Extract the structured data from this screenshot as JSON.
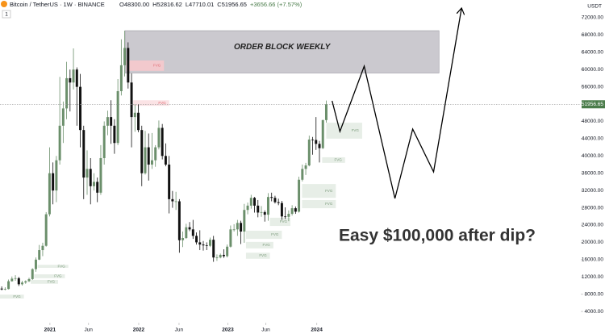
{
  "chart_data": {
    "type": "candlestick",
    "title": "Bitcoin / TetherUS · 1W · BINANCE",
    "interval_badge": "1",
    "header_values": [
      "O48300.00",
      "H52816.62",
      "L47710.01",
      "C51956.65",
      "+3656.66 (+7.57%)"
    ],
    "currency": "USDT",
    "annotation": "Easy $100,000 after dip?",
    "up_color": "#6b8f6b",
    "down_color": "#111111",
    "last_price_color": "#4a7c4a",
    "projection_color": "#000000",
    "xlim": [
      0,
      170
    ],
    "ylim": [
      1400,
      76100
    ],
    "xticks": [
      {
        "value": 14.6,
        "label": "2021"
      },
      {
        "value": 25.9,
        "label": "Jun"
      },
      {
        "value": 40.6,
        "label": "2022"
      },
      {
        "value": 52.4,
        "label": "Jun"
      },
      {
        "value": 66.7,
        "label": "2023"
      },
      {
        "value": 77.8,
        "label": "Jun"
      },
      {
        "value": 92.7,
        "label": "2024"
      }
    ],
    "yticks": [
      {
        "value": 72000,
        "label": "72000.00"
      },
      {
        "value": 68000,
        "label": "68000.00"
      },
      {
        "value": 64000,
        "label": "64000.00"
      },
      {
        "value": 60000,
        "label": "60000.00"
      },
      {
        "value": 56000,
        "label": "56000.00"
      },
      {
        "value": 52000,
        "label": "52000.00"
      },
      {
        "value": 48000,
        "label": "48000.00"
      },
      {
        "value": 44000,
        "label": "44000.00"
      },
      {
        "value": 40000,
        "label": "40000.00"
      },
      {
        "value": 36000,
        "label": "36000.00"
      },
      {
        "value": 32000,
        "label": "32000.00"
      },
      {
        "value": 28000,
        "label": "28000.00"
      },
      {
        "value": 24000,
        "label": "24000.00"
      },
      {
        "value": 20000,
        "label": "20000.00"
      },
      {
        "value": 16000,
        "label": "16000.00"
      },
      {
        "value": 12000,
        "label": "12000.00"
      },
      {
        "value": 8000,
        "label": "8000.00"
      },
      {
        "value": 4000,
        "label": "4000.00"
      }
    ],
    "ohlc": [
      [
        9300,
        9800,
        8900,
        9100
      ],
      [
        9100,
        9600,
        8900,
        9200
      ],
      [
        9200,
        11400,
        9100,
        11000
      ],
      [
        11000,
        12100,
        10900,
        11600
      ],
      [
        11600,
        12400,
        11100,
        11700
      ],
      [
        11700,
        12000,
        9900,
        10300
      ],
      [
        10300,
        11100,
        10000,
        10700
      ],
      [
        10700,
        11200,
        10400,
        11000
      ],
      [
        11000,
        11800,
        10800,
        11500
      ],
      [
        11500,
        14000,
        11300,
        13800
      ],
      [
        13800,
        16500,
        13200,
        16000
      ],
      [
        16000,
        19400,
        15900,
        18200
      ],
      [
        18200,
        19900,
        16800,
        19200
      ],
      [
        19200,
        27000,
        19000,
        26500
      ],
      [
        26500,
        42000,
        26000,
        36000
      ],
      [
        36000,
        38500,
        28800,
        32000
      ],
      [
        32000,
        40000,
        29300,
        39000
      ],
      [
        39000,
        58300,
        38000,
        47000
      ],
      [
        47000,
        52600,
        43000,
        51000
      ],
      [
        51000,
        61800,
        48500,
        58000
      ],
      [
        58000,
        60000,
        50300,
        57000
      ],
      [
        57000,
        64900,
        55400,
        60000
      ],
      [
        60000,
        60500,
        47000,
        56000
      ],
      [
        56000,
        59000,
        42000,
        46000
      ],
      [
        46000,
        47000,
        30000,
        35000
      ],
      [
        35000,
        41300,
        31000,
        37000
      ],
      [
        37000,
        39500,
        28800,
        33000
      ],
      [
        33000,
        36000,
        32000,
        34000
      ],
      [
        34000,
        35000,
        29300,
        31500
      ],
      [
        31500,
        42500,
        31000,
        39500
      ],
      [
        39500,
        48000,
        38000,
        47000
      ],
      [
        47000,
        50500,
        44800,
        49000
      ],
      [
        49000,
        52900,
        42800,
        47000
      ],
      [
        47000,
        48500,
        40500,
        43000
      ],
      [
        43000,
        57800,
        42500,
        55000
      ],
      [
        55000,
        67000,
        54000,
        61000
      ],
      [
        61000,
        69000,
        58400,
        65000
      ],
      [
        65000,
        66300,
        55600,
        57000
      ],
      [
        57000,
        59100,
        42000,
        49000
      ],
      [
        49000,
        51900,
        45600,
        50000
      ],
      [
        50000,
        52000,
        45500,
        46000
      ],
      [
        46000,
        47000,
        33000,
        36000
      ],
      [
        36000,
        45800,
        35700,
        42000
      ],
      [
        42000,
        45200,
        34300,
        38000
      ],
      [
        38000,
        45300,
        37000,
        39000
      ],
      [
        39000,
        42500,
        37500,
        42000
      ],
      [
        42000,
        48200,
        41500,
        46500
      ],
      [
        46500,
        47400,
        39200,
        40000
      ],
      [
        40000,
        42900,
        37600,
        38000
      ],
      [
        38000,
        40000,
        26700,
        30000
      ],
      [
        30000,
        31900,
        28000,
        29500
      ],
      [
        29500,
        31700,
        27500,
        29500
      ],
      [
        29500,
        30000,
        17600,
        20500
      ],
      [
        20500,
        22500,
        18900,
        21000
      ],
      [
        21000,
        24300,
        20800,
        23500
      ],
      [
        23500,
        24700,
        22600,
        23000
      ],
      [
        23000,
        25200,
        20800,
        21500
      ],
      [
        21500,
        22300,
        19500,
        20000
      ],
      [
        20000,
        22800,
        18200,
        19500
      ],
      [
        19500,
        20300,
        18100,
        19300
      ],
      [
        19300,
        20000,
        18200,
        19200
      ],
      [
        19200,
        21100,
        18900,
        20600
      ],
      [
        20600,
        21500,
        15500,
        16500
      ],
      [
        16500,
        17200,
        15700,
        16500
      ],
      [
        16500,
        17400,
        16300,
        17100
      ],
      [
        17100,
        18400,
        16400,
        16800
      ],
      [
        16800,
        19500,
        16500,
        19000
      ],
      [
        19000,
        23900,
        18800,
        23000
      ],
      [
        23000,
        24200,
        22500,
        23000
      ],
      [
        23000,
        25200,
        21500,
        24500
      ],
      [
        24500,
        25000,
        19600,
        22500
      ],
      [
        22500,
        28900,
        19900,
        27500
      ],
      [
        27500,
        29200,
        26500,
        28500
      ],
      [
        28500,
        31000,
        27800,
        30300
      ],
      [
        30300,
        30500,
        26900,
        28500
      ],
      [
        28500,
        29800,
        25800,
        26900
      ],
      [
        26900,
        28400,
        25900,
        27000
      ],
      [
        27000,
        27400,
        24800,
        26400
      ],
      [
        26400,
        31400,
        25000,
        30500
      ],
      [
        30500,
        31500,
        29500,
        30300
      ],
      [
        30300,
        30800,
        29000,
        29300
      ],
      [
        29300,
        30100,
        28600,
        29100
      ],
      [
        29100,
        29600,
        25200,
        26000
      ],
      [
        26000,
        28100,
        25400,
        25900
      ],
      [
        25900,
        27400,
        24900,
        26600
      ],
      [
        26600,
        28600,
        26200,
        27900
      ],
      [
        27900,
        28300,
        26600,
        27100
      ],
      [
        27100,
        35200,
        26900,
        34500
      ],
      [
        34500,
        38000,
        34100,
        37000
      ],
      [
        37000,
        38400,
        35600,
        37800
      ],
      [
        37800,
        44700,
        37600,
        43800
      ],
      [
        43800,
        44400,
        40300,
        43700
      ],
      [
        43700,
        49000,
        41400,
        42800
      ],
      [
        42800,
        43500,
        38500,
        41800
      ],
      [
        41800,
        48400,
        41600,
        48300
      ],
      [
        48300,
        52816.62,
        47710.01,
        51956.65
      ]
    ],
    "zones": [
      {
        "label": "ORDER BLOCK WEEKLY",
        "x": [
          36.6,
          128.5
        ],
        "y": [
          59200,
          69000
        ],
        "color": "#b9b7bf"
      },
      {
        "label": "FVG",
        "x": [
          37,
          48
        ],
        "y": [
          59700,
          62100
        ],
        "color": "#f6c9cc"
      },
      {
        "label": "FVG",
        "x": [
          39,
          49.5
        ],
        "y": [
          51600,
          52900
        ],
        "color": "#fbe0e2"
      },
      {
        "label": "FVG",
        "x": [
          95.5,
          106
        ],
        "y": [
          44000,
          47700
        ],
        "color": "#e4ece4"
      },
      {
        "label": "FVG",
        "x": [
          94.3,
          101
        ],
        "y": [
          38400,
          39700
        ],
        "color": "#e4ece4"
      },
      {
        "label": "FVG",
        "x": [
          88.4,
          98.3
        ],
        "y": [
          30300,
          33500
        ],
        "color": "#e4ece4"
      },
      {
        "label": "FVG",
        "x": [
          88.4,
          98.3
        ],
        "y": [
          27900,
          29800
        ],
        "color": "#e4ece4"
      },
      {
        "label": "FVG",
        "x": [
          79,
          85
        ],
        "y": [
          23800,
          25700
        ],
        "color": "#e4ece4"
      },
      {
        "label": "FVG",
        "x": [
          72,
          82.5
        ],
        "y": [
          20800,
          22700
        ],
        "color": "#e4ece4"
      },
      {
        "label": "FVG",
        "x": [
          72,
          80
        ],
        "y": [
          18600,
          20100
        ],
        "color": "#e4ece4"
      },
      {
        "label": "FVG",
        "x": [
          72,
          79
        ],
        "y": [
          16200,
          17600
        ],
        "color": "#e4ece4"
      },
      {
        "label": "FVG",
        "x": [
          11,
          20
        ],
        "y": [
          14100,
          14800
        ],
        "color": "#e4ece4"
      },
      {
        "label": "FVG",
        "x": [
          10,
          19
        ],
        "y": [
          11700,
          12600
        ],
        "color": "#e4ece4"
      },
      {
        "label": "FVG",
        "x": [
          9,
          17
        ],
        "y": [
          10400,
          11300
        ],
        "color": "#e4ece4"
      },
      {
        "label": "FVG",
        "x": [
          0,
          7
        ],
        "y": [
          7000,
          7900
        ],
        "color": "#e4ece4"
      }
    ],
    "projection": {
      "x": [
        97.2,
        99.5,
        106.6,
        115.6,
        120.8,
        126.9,
        135.1
      ],
      "y": [
        52760,
        45660,
        60790,
        30160,
        46220,
        36320,
        74230
      ]
    }
  }
}
